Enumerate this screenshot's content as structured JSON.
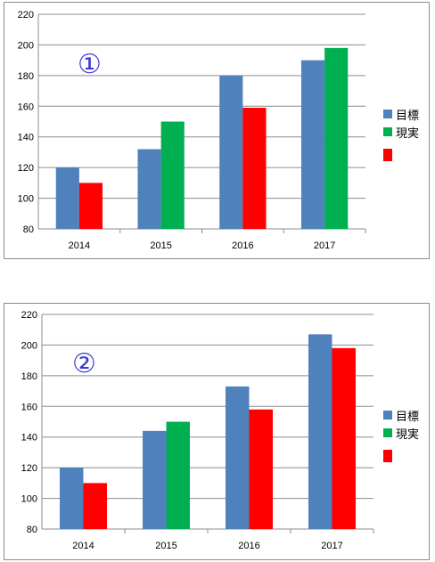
{
  "chart_data": [
    {
      "type": "bar",
      "badge": "①",
      "categories": [
        "2014",
        "2015",
        "2016",
        "2017"
      ],
      "y_ticks": [
        "80",
        "100",
        "120",
        "140",
        "160",
        "180",
        "200",
        "220"
      ],
      "ylim": [
        80,
        220
      ],
      "grid": true,
      "legend_position": "right",
      "legend": [
        {
          "label": "目標",
          "color": "#4f81bd"
        },
        {
          "label": "現実",
          "color": "#00b050"
        },
        {
          "label": "",
          "color": "#ff0000"
        }
      ],
      "bars": [
        [
          {
            "value": 120,
            "color": "#4f81bd"
          },
          {
            "value": 110,
            "color": "#ff0000"
          }
        ],
        [
          {
            "value": 132,
            "color": "#4f81bd"
          },
          {
            "value": 150,
            "color": "#00b050"
          }
        ],
        [
          {
            "value": 180,
            "color": "#4f81bd"
          },
          {
            "value": 159,
            "color": "#ff0000"
          }
        ],
        [
          {
            "value": 190,
            "color": "#4f81bd"
          },
          {
            "value": 198,
            "color": "#00b050"
          }
        ]
      ]
    },
    {
      "type": "bar",
      "badge": "②",
      "categories": [
        "2014",
        "2015",
        "2016",
        "2017"
      ],
      "y_ticks": [
        "80",
        "100",
        "120",
        "140",
        "160",
        "180",
        "200",
        "220"
      ],
      "ylim": [
        80,
        220
      ],
      "grid": true,
      "legend_position": "right",
      "legend": [
        {
          "label": "目標",
          "color": "#4f81bd"
        },
        {
          "label": "現実",
          "color": "#00b050"
        },
        {
          "label": "",
          "color": "#ff0000"
        }
      ],
      "bars": [
        [
          {
            "value": 120,
            "color": "#4f81bd"
          },
          {
            "value": 110,
            "color": "#ff0000"
          }
        ],
        [
          {
            "value": 144,
            "color": "#4f81bd"
          },
          {
            "value": 150,
            "color": "#00b050"
          }
        ],
        [
          {
            "value": 173,
            "color": "#4f81bd"
          },
          {
            "value": 158,
            "color": "#ff0000"
          }
        ],
        [
          {
            "value": 207,
            "color": "#4f81bd"
          },
          {
            "value": 198,
            "color": "#ff0000"
          }
        ]
      ]
    }
  ]
}
